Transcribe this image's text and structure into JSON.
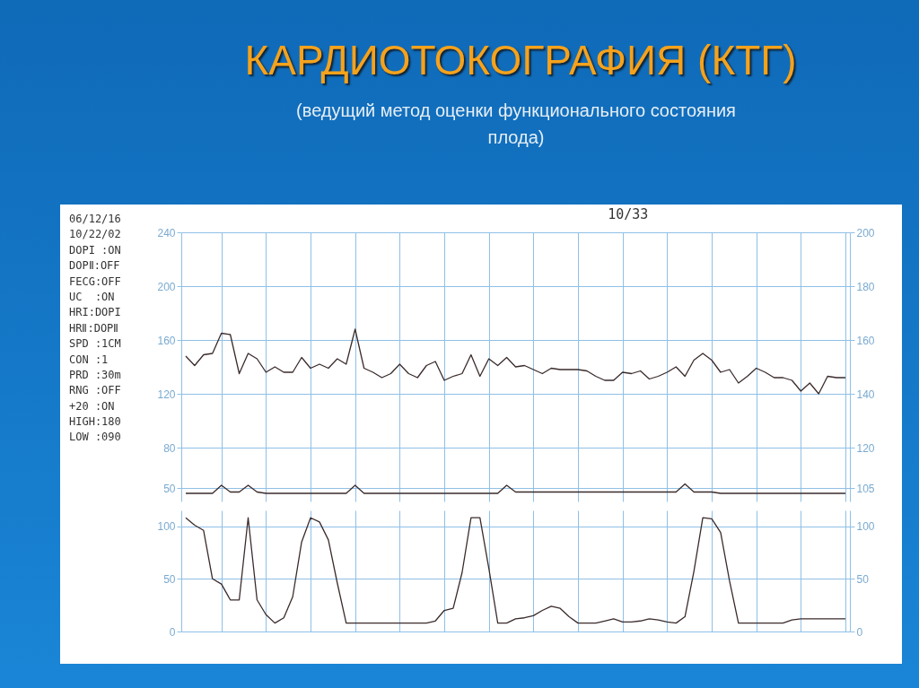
{
  "chart_data": [
    {
      "type": "line",
      "title": "КАРДИОТОКОГРАФИЯ (КТГ)",
      "subtitle": "(ведущий метод оценки функционального состояния плода)",
      "annotations": [
        "10/33",
        "06/12/16",
        "10/22/02",
        "DOPI :ON",
        "DOPⅡ:OFF",
        "FECG:OFF",
        "UC  :ON",
        "HRI:DOPI",
        "HRⅡ:DOPⅡ",
        "SPD :1CM",
        "CON :1",
        "PRD :30m",
        "RNG :OFF",
        "+20 :ON",
        "HIGH:180",
        "LOW :090"
      ],
      "categories": [
        null,
        null,
        null,
        null,
        null,
        null,
        null,
        null,
        null,
        null,
        null,
        null,
        null,
        null,
        null,
        null,
        null,
        null,
        null,
        null,
        null,
        null,
        null,
        null,
        null,
        null,
        null,
        null,
        null,
        null,
        null,
        null,
        null,
        null,
        null,
        null,
        null,
        null,
        null,
        null,
        null,
        null,
        null,
        null,
        null,
        null,
        null,
        null,
        null,
        null,
        null,
        null,
        null,
        null,
        null,
        null,
        null,
        null,
        null,
        null,
        null,
        null,
        null,
        null,
        null,
        null,
        null,
        null,
        null,
        null,
        null,
        null,
        null,
        null,
        null
      ],
      "ylim": [
        40,
        240
      ],
      "yticks": [
        50,
        80,
        120,
        160,
        200,
        240
      ],
      "y2lim": [
        100,
        200
      ],
      "y2ticks": [
        105,
        120,
        140,
        160,
        180,
        200
      ],
      "grid": true,
      "tick_labels": "y",
      "series": [
        {
          "color": "#3b2b2b",
          "values": [
            148,
            141,
            149,
            150,
            165,
            164,
            135,
            150,
            146,
            136,
            140,
            136,
            136,
            147,
            139,
            142,
            139,
            146,
            142,
            168,
            139,
            136,
            132,
            135,
            142,
            135,
            132,
            141,
            144,
            130,
            133,
            135,
            149,
            133,
            146,
            141,
            147,
            140,
            141,
            138,
            135,
            139,
            138,
            138,
            138,
            137,
            133,
            130,
            130,
            136,
            135,
            137,
            131,
            133,
            136,
            140,
            133,
            145,
            150,
            145,
            136,
            138,
            128,
            133,
            139,
            136,
            132,
            132,
            130,
            122,
            128,
            120,
            133,
            132,
            132
          ]
        },
        {
          "color": "#3b2b2b",
          "values": [
            46,
            46,
            46,
            46,
            52,
            47,
            47,
            52,
            47,
            46,
            46,
            46,
            46,
            46,
            46,
            46,
            46,
            46,
            46,
            52,
            46,
            46,
            46,
            46,
            46,
            46,
            46,
            46,
            46,
            46,
            46,
            46,
            46,
            46,
            46,
            46,
            52,
            47,
            47,
            47,
            47,
            47,
            47,
            47,
            47,
            47,
            47,
            47,
            47,
            47,
            47,
            47,
            47,
            47,
            47,
            47,
            53,
            47,
            47,
            47,
            46,
            46,
            46,
            46,
            46,
            46,
            46,
            46,
            46,
            46,
            46,
            46,
            46,
            46,
            46
          ]
        }
      ]
    },
    {
      "type": "line",
      "categories": [
        null,
        null,
        null,
        null,
        null,
        null,
        null,
        null,
        null,
        null,
        null,
        null,
        null,
        null,
        null,
        null,
        null,
        null,
        null,
        null,
        null,
        null,
        null,
        null,
        null,
        null,
        null,
        null,
        null,
        null,
        null,
        null,
        null,
        null,
        null,
        null,
        null,
        null,
        null,
        null,
        null,
        null,
        null,
        null,
        null,
        null,
        null,
        null,
        null,
        null,
        null,
        null,
        null,
        null,
        null,
        null,
        null,
        null,
        null,
        null,
        null,
        null,
        null,
        null,
        null,
        null,
        null,
        null,
        null,
        null,
        null,
        null,
        null,
        null,
        null
      ],
      "ylim": [
        0,
        115
      ],
      "yticks": [
        0,
        50,
        100
      ],
      "y2lim": [
        0,
        115
      ],
      "y2ticks": [
        0,
        50,
        100
      ],
      "grid": true,
      "tick_labels": "y",
      "series": [
        {
          "color": "#3b2b2b",
          "values": [
            108,
            101,
            96,
            50,
            45,
            30,
            30,
            108,
            30,
            16,
            8,
            13,
            33,
            85,
            108,
            104,
            87,
            46,
            8,
            8,
            8,
            8,
            8,
            8,
            8,
            8,
            8,
            8,
            10,
            20,
            22,
            56,
            108,
            108,
            60,
            8,
            8,
            12,
            13,
            15,
            20,
            24,
            22,
            14,
            8,
            8,
            8,
            10,
            12,
            9,
            9,
            10,
            12,
            11,
            9,
            8,
            14,
            57,
            108,
            107,
            94,
            48,
            8,
            8,
            8,
            8,
            8,
            8,
            11,
            12,
            12,
            12,
            12,
            12,
            12
          ]
        }
      ]
    }
  ]
}
